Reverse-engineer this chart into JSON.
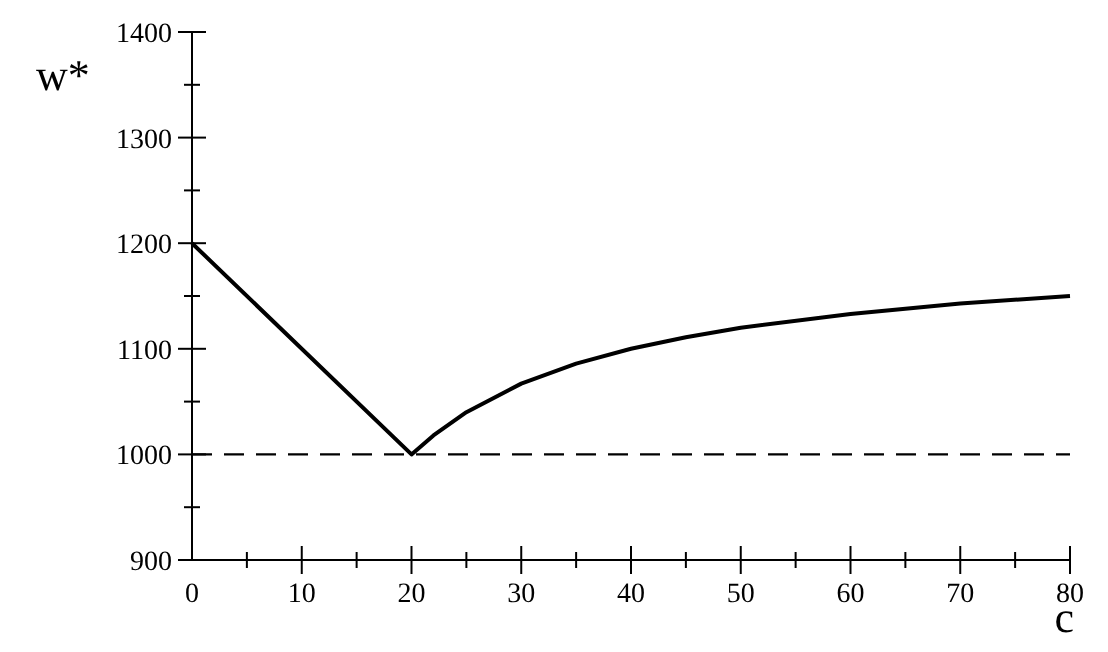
{
  "chart_data": {
    "type": "line",
    "xlabel": "c",
    "ylabel": "w*",
    "x": [
      0,
      20,
      22,
      25,
      30,
      35,
      40,
      45,
      50,
      60,
      70,
      80
    ],
    "series": [
      {
        "color": "#000000",
        "values": [
          1200,
          1000,
          1018,
          1040,
          1067,
          1086,
          1100,
          1111,
          1120,
          1133,
          1143,
          1150
        ]
      }
    ],
    "xlim": [
      0,
      80
    ],
    "xticks": [
      0,
      {
        "value": 5,
        "label": null
      },
      10,
      {
        "value": 15,
        "label": null
      },
      20,
      {
        "value": 25,
        "label": null
      },
      30,
      {
        "value": 35,
        "label": null
      },
      40,
      {
        "value": 45,
        "label": null
      },
      50,
      {
        "value": 55,
        "label": null
      },
      60,
      {
        "value": 65,
        "label": null
      },
      70,
      {
        "value": 75,
        "label": null
      },
      80
    ],
    "ylim": [
      900,
      1400
    ],
    "yticks": [
      900,
      {
        "value": 950,
        "label": null
      },
      1000,
      {
        "value": 1050,
        "label": null
      },
      1100,
      {
        "value": 1150,
        "label": null
      },
      1200,
      {
        "value": 1250,
        "label": null
      },
      1300,
      {
        "value": 1350,
        "label": null
      },
      1400
    ],
    "ref_lines": [
      {
        "axis": "y",
        "value": 1000,
        "color": "#000000",
        "line_style": "dashed"
      }
    ],
    "line_style": "solid",
    "marker": "none",
    "grid": false
  }
}
